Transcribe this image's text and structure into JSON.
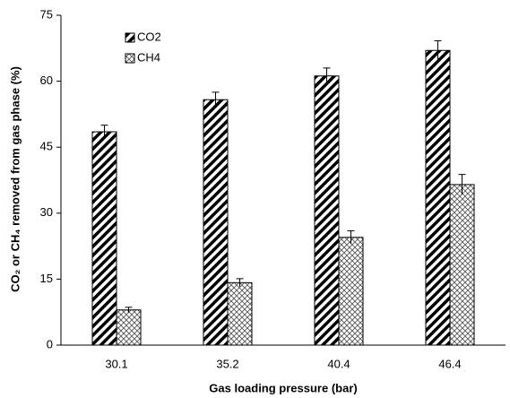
{
  "chart_data": {
    "type": "bar",
    "xlabel": "Gas loading pressure (bar)",
    "ylabel": "CO₂ or CH₄ removed from gas phase (%)",
    "categories": [
      "30.1",
      "35.2",
      "40.4",
      "46.4"
    ],
    "series": [
      {
        "name": "CO2",
        "color": "#000000",
        "hatch": "stripes",
        "values": [
          48.5,
          55.8,
          61.2,
          67.0
        ],
        "errors": [
          1.5,
          1.7,
          1.8,
          2.2
        ]
      },
      {
        "name": "CH4",
        "color": "#000000",
        "hatch": "cross",
        "values": [
          8.0,
          14.2,
          24.5,
          36.5
        ],
        "errors": [
          0.6,
          0.9,
          1.5,
          2.3
        ]
      }
    ],
    "ylim": [
      0,
      75
    ],
    "yticks": [
      0,
      15,
      30,
      45,
      60,
      75
    ],
    "grid": false,
    "legend": "upper left"
  }
}
